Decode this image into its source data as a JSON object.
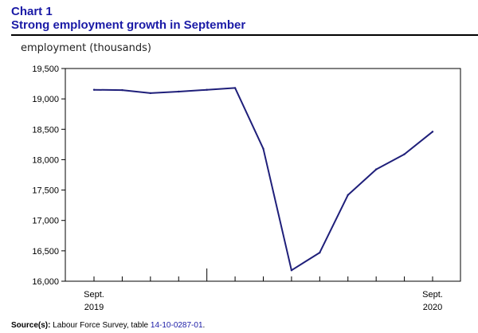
{
  "chart_title": {
    "line1": "Chart 1",
    "line2": "Strong employment growth in September"
  },
  "source": {
    "label": "Source(s):",
    "text": "Labour Force Survey, table",
    "link_text": "14-10-0287-01",
    "trailing": "."
  },
  "chart_data": {
    "type": "line",
    "title": "Strong employment growth in September",
    "xlabel": "",
    "ylabel": "employment (thousands)",
    "ylim": [
      16000,
      19500
    ],
    "yticks": [
      16000,
      16500,
      17000,
      17500,
      18000,
      18500,
      19000,
      19500
    ],
    "ytick_labels": [
      "16,000",
      "16,500",
      "17,000",
      "17,500",
      "18,000",
      "18,500",
      "19,000",
      "19,500"
    ],
    "x_labels": [
      {
        "index": 0,
        "month": "Sept.",
        "year": "2019"
      },
      {
        "index": 12,
        "month": "Sept.",
        "year": "2020"
      }
    ],
    "x": [
      "2019-09",
      "2019-10",
      "2019-11",
      "2019-12",
      "2020-01",
      "2020-02",
      "2020-03",
      "2020-04",
      "2020-05",
      "2020-06",
      "2020-07",
      "2020-08",
      "2020-09"
    ],
    "series": [
      {
        "values": [
          19150,
          19145,
          19095,
          19120,
          19150,
          19180,
          18180,
          16180,
          16470,
          17420,
          17840,
          18090,
          18460
        ]
      }
    ],
    "grid": false,
    "line_color": "#1f1f7a"
  }
}
